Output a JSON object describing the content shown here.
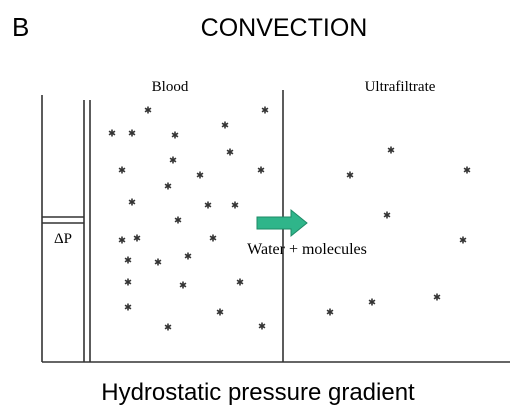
{
  "panel_label": "B",
  "title": "CONVECTION",
  "compartments": {
    "left": "Blood",
    "right": "Ultrafiltrate"
  },
  "piston_label": "ΔP",
  "arrow_label": "Water + molecules",
  "caption": "Hydrostatic pressure gradient"
}
